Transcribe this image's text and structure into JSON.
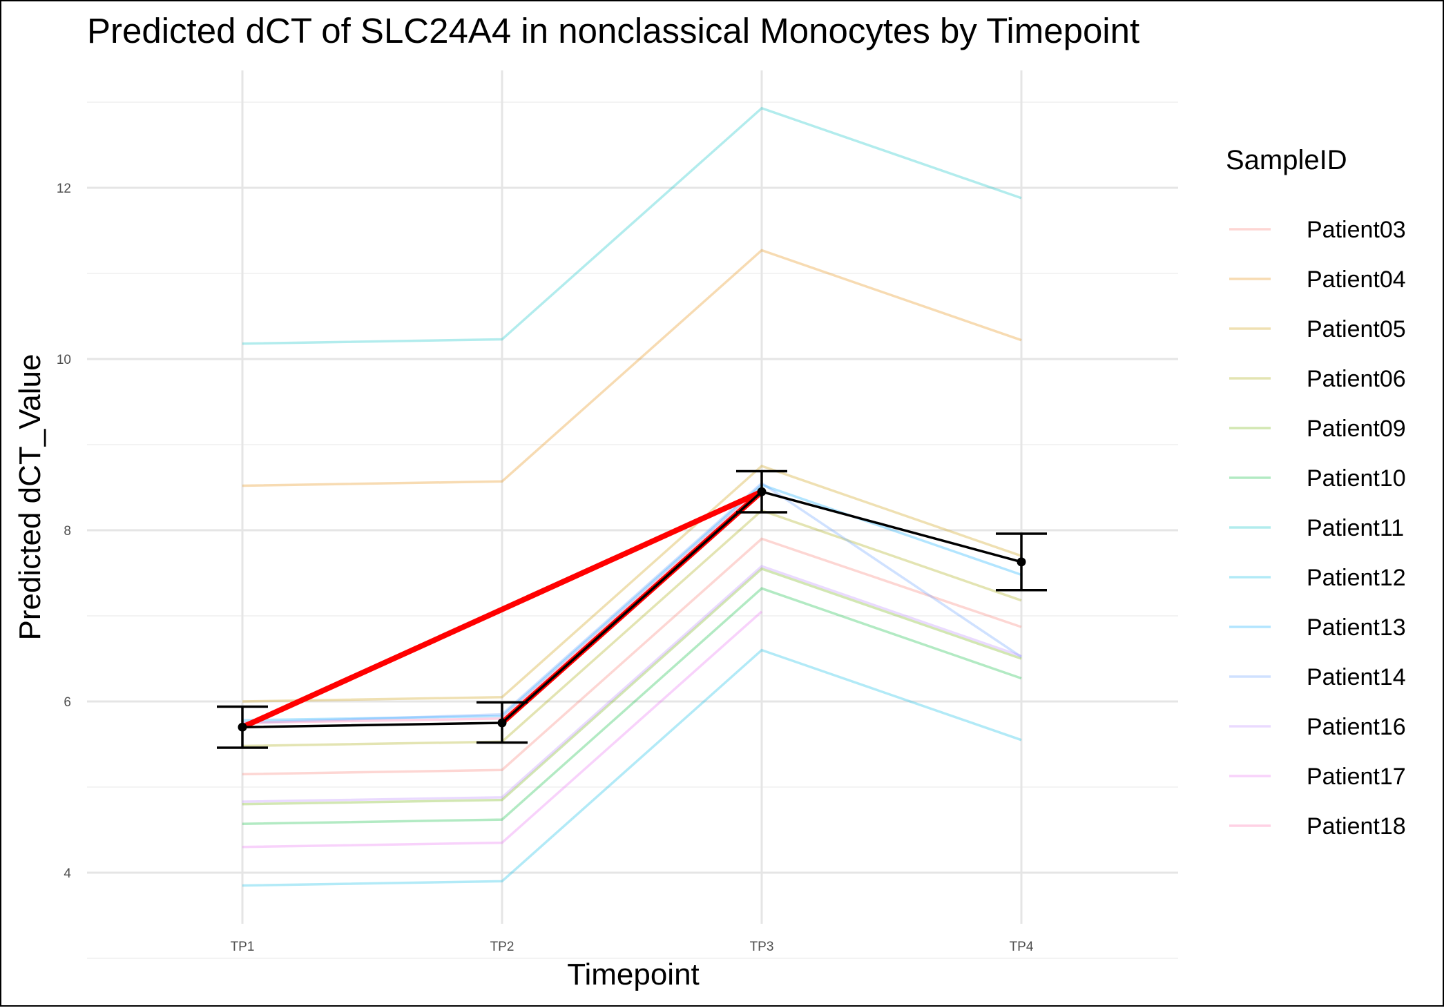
{
  "chart_data": {
    "type": "line",
    "title": "Predicted dCT of  SLC24A4 in  nonclassical  Monocytes by Timepoint",
    "xlabel": "Timepoint",
    "ylabel": "Predicted dCT_Value",
    "categories": [
      "TP1",
      "TP2",
      "TP3",
      "TP4"
    ],
    "yticks": [
      4,
      6,
      8,
      10,
      12
    ],
    "ylim": [
      3.4,
      13.5
    ],
    "grid": true,
    "legend": {
      "title": "SampleID",
      "placement": "right"
    },
    "series": [
      {
        "name": "Patient03",
        "color": "#F8766D",
        "values": [
          5.15,
          5.2,
          7.9,
          6.87
        ]
      },
      {
        "name": "Patient04",
        "color": "#E58700",
        "values": [
          8.52,
          8.57,
          11.27,
          10.22
        ]
      },
      {
        "name": "Patient05",
        "color": "#C99800",
        "values": [
          6.0,
          6.05,
          8.75,
          7.7
        ]
      },
      {
        "name": "Patient06",
        "color": "#A3A500",
        "values": [
          5.48,
          5.53,
          8.23,
          7.18
        ]
      },
      {
        "name": "Patient09",
        "color": "#6BB100",
        "values": [
          4.8,
          4.85,
          7.55,
          6.5
        ]
      },
      {
        "name": "Patient10",
        "color": "#00BA38",
        "values": [
          4.57,
          4.62,
          7.32,
          6.27
        ]
      },
      {
        "name": "Patient11",
        "color": "#00BFC4",
        "values": [
          10.18,
          10.23,
          12.93,
          11.88
        ]
      },
      {
        "name": "Patient12",
        "color": "#00B9E3",
        "values": [
          3.85,
          3.9,
          6.6,
          5.55
        ]
      },
      {
        "name": "Patient13",
        "color": "#00A9FF",
        "values": [
          5.78,
          5.83,
          8.53,
          7.48
        ]
      },
      {
        "name": "Patient14",
        "color": "#619CFF",
        "values": [
          5.75,
          5.85,
          8.55,
          6.52
        ]
      },
      {
        "name": "Patient16",
        "color": "#B983FF",
        "values": [
          4.83,
          4.88,
          7.58,
          6.53
        ]
      },
      {
        "name": "Patient17",
        "color": "#E76BF3",
        "values": [
          4.3,
          4.35,
          7.05,
          null
        ]
      },
      {
        "name": "Patient18",
        "color": "#FF67A4",
        "values": [
          5.75,
          5.8,
          8.5,
          null
        ]
      }
    ],
    "mean": {
      "color": "#000000",
      "values": [
        5.7,
        5.75,
        8.45,
        7.63
      ],
      "error_low": [
        5.46,
        5.52,
        8.21,
        7.3
      ],
      "error_high": [
        5.94,
        5.99,
        8.69,
        7.96
      ]
    },
    "highlight": {
      "color": "#FF0000",
      "points": [
        {
          "x": "TP1",
          "y": 5.7
        },
        {
          "x": "TP3",
          "y": 8.45
        },
        {
          "x": "TP2",
          "y": 5.75
        },
        {
          "x": "TP3",
          "y": 8.45
        }
      ]
    }
  }
}
